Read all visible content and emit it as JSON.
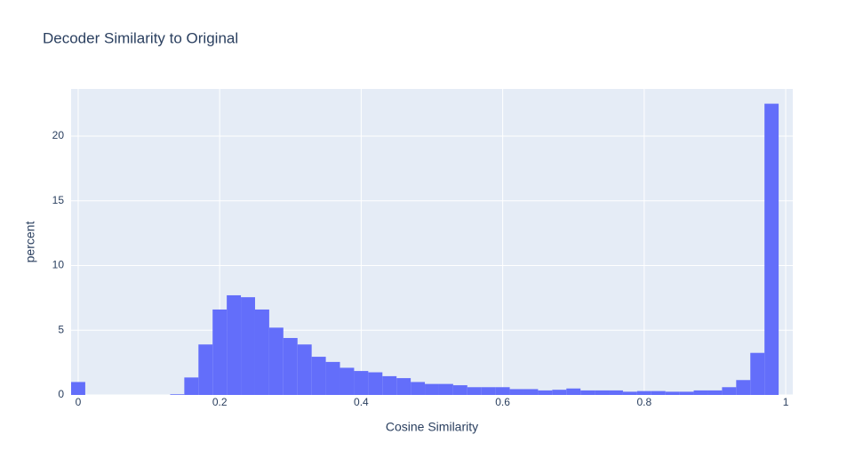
{
  "chart_data": {
    "type": "histogram",
    "title": "Decoder Similarity to Original",
    "x_label": "Cosine Similarity",
    "y_label": "percent",
    "color": "#636efa",
    "grid": true,
    "bins": [
      -0.01,
      0.01,
      0.03,
      0.05,
      0.07,
      0.09,
      0.11,
      0.13,
      0.15,
      0.17,
      0.19,
      0.21,
      0.23,
      0.25,
      0.27,
      0.29,
      0.31,
      0.33,
      0.35,
      0.37,
      0.39,
      0.41,
      0.43,
      0.45,
      0.47,
      0.49,
      0.51,
      0.53,
      0.55,
      0.57,
      0.59,
      0.61,
      0.63,
      0.65,
      0.67,
      0.69,
      0.71,
      0.73,
      0.75,
      0.77,
      0.79,
      0.81,
      0.83,
      0.85,
      0.87,
      0.89,
      0.91,
      0.93,
      0.95,
      0.97,
      0.99
    ],
    "values": [
      1.0,
      0,
      0,
      0,
      0,
      0,
      0,
      0.05,
      1.35,
      3.9,
      6.6,
      7.7,
      7.55,
      6.6,
      5.2,
      4.4,
      3.9,
      2.95,
      2.55,
      2.1,
      1.85,
      1.75,
      1.45,
      1.3,
      1.0,
      0.85,
      0.85,
      0.75,
      0.6,
      0.6,
      0.6,
      0.45,
      0.45,
      0.35,
      0.4,
      0.5,
      0.35,
      0.35,
      0.35,
      0.25,
      0.3,
      0.3,
      0.25,
      0.25,
      0.35,
      0.35,
      0.6,
      1.15,
      3.25,
      22.5
    ],
    "xlim": [
      -0.01,
      1.01
    ],
    "ylim": [
      0,
      23.64
    ],
    "xticks": [
      0,
      0.2,
      0.4,
      0.6,
      0.8,
      1
    ],
    "yticks": [
      0,
      5,
      10,
      15,
      20
    ]
  }
}
